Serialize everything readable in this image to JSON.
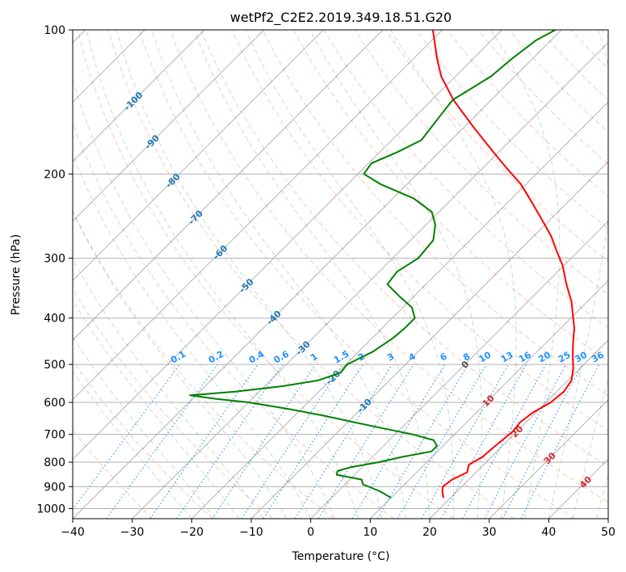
{
  "chart_data": {
    "type": "line",
    "diagram": "skew-T log-P",
    "title": "wetPf2_C2E2.2019.349.18.51.G20",
    "xlabel": "Temperature (°C)",
    "ylabel": "Pressure (hPa)",
    "xlim": [
      -40,
      50
    ],
    "ylim": [
      1050,
      100
    ],
    "y_scale": "log",
    "x_ticks": [
      "−40",
      "−30",
      "−20",
      "−10",
      "0",
      "10",
      "20",
      "30",
      "40",
      "50"
    ],
    "y_ticks": [
      "100",
      "200",
      "300",
      "400",
      "500",
      "600",
      "700",
      "800",
      "900",
      "1000"
    ],
    "grid": true,
    "background_lines": {
      "isotherms_color": "#000000",
      "dry_adiabats_color": "#fa8072",
      "moist_adiabats_color": "#2e8b57",
      "mixing_ratio_color": "#1e90ff",
      "dry_adiabat_labels": [
        "-100",
        "-90",
        "-80",
        "-70",
        "-60",
        "-50",
        "-40",
        "-30",
        "-20",
        "-10",
        "0",
        "10",
        "20",
        "30",
        "40"
      ],
      "mixing_ratio_labels": [
        "0.1",
        "0.2",
        "0.4",
        "0.6",
        "1",
        "1.5",
        "2",
        "3",
        "4",
        "6",
        "8",
        "10",
        "13",
        "16",
        "20",
        "25",
        "30",
        "36"
      ]
    },
    "series": [
      {
        "color": "#ff0000",
        "points": [
          [
            950,
            18.8
          ],
          [
            920,
            17.5
          ],
          [
            900,
            16.8
          ],
          [
            870,
            17.2
          ],
          [
            840,
            18.5
          ],
          [
            810,
            17.5
          ],
          [
            780,
            18.5
          ],
          [
            750,
            18.7
          ],
          [
            720,
            19.0
          ],
          [
            690,
            19.3
          ],
          [
            660,
            19.0
          ],
          [
            630,
            19.5
          ],
          [
            600,
            20.8
          ],
          [
            570,
            21.2
          ],
          [
            540,
            20.6
          ],
          [
            510,
            18.9
          ],
          [
            480,
            16.7
          ],
          [
            450,
            14.5
          ],
          [
            420,
            12.3
          ],
          [
            400,
            10.4
          ],
          [
            370,
            7.4
          ],
          [
            340,
            3.6
          ],
          [
            310,
            -0.3
          ],
          [
            290,
            -3.6
          ],
          [
            270,
            -7.0
          ],
          [
            250,
            -11.2
          ],
          [
            230,
            -15.8
          ],
          [
            210,
            -20.9
          ],
          [
            195,
            -25.8
          ],
          [
            180,
            -30.9
          ],
          [
            160,
            -38.3
          ],
          [
            140,
            -46.4
          ],
          [
            125,
            -52.4
          ],
          [
            115,
            -56.0
          ],
          [
            100,
            -61.6
          ]
        ]
      },
      {
        "color": "#008000",
        "points": [
          [
            950,
            10.0
          ],
          [
            920,
            7.0
          ],
          [
            890,
            3.0
          ],
          [
            870,
            2.0
          ],
          [
            850,
            -3.0
          ],
          [
            835,
            -3.5
          ],
          [
            820,
            -2.0
          ],
          [
            800,
            2.0
          ],
          [
            780,
            5.0
          ],
          [
            760,
            9.0
          ],
          [
            740,
            9.0
          ],
          [
            720,
            7.5
          ],
          [
            700,
            3.0
          ],
          [
            680,
            -3.0
          ],
          [
            660,
            -9.0
          ],
          [
            640,
            -15.0
          ],
          [
            620,
            -22.0
          ],
          [
            600,
            -30.0
          ],
          [
            590,
            -36.0
          ],
          [
            580,
            -41.0
          ],
          [
            570,
            -34.0
          ],
          [
            555,
            -27.0
          ],
          [
            540,
            -22.0
          ],
          [
            520,
            -19.5
          ],
          [
            500,
            -19.8
          ],
          [
            470,
            -17.6
          ],
          [
            440,
            -16.5
          ],
          [
            420,
            -16.2
          ],
          [
            400,
            -16.2
          ],
          [
            380,
            -18.5
          ],
          [
            360,
            -22.5
          ],
          [
            340,
            -26.5
          ],
          [
            320,
            -27.0
          ],
          [
            300,
            -25.7
          ],
          [
            275,
            -26.2
          ],
          [
            255,
            -28.5
          ],
          [
            240,
            -31.2
          ],
          [
            225,
            -36.5
          ],
          [
            210,
            -44.5
          ],
          [
            200,
            -49.0
          ],
          [
            190,
            -49.5
          ],
          [
            180,
            -47.0
          ],
          [
            170,
            -45.0
          ],
          [
            150,
            -46.0
          ],
          [
            140,
            -46.5
          ],
          [
            125,
            -44.0
          ],
          [
            115,
            -43.5
          ],
          [
            105,
            -42.5
          ],
          [
            100,
            -41.0
          ]
        ]
      }
    ]
  }
}
